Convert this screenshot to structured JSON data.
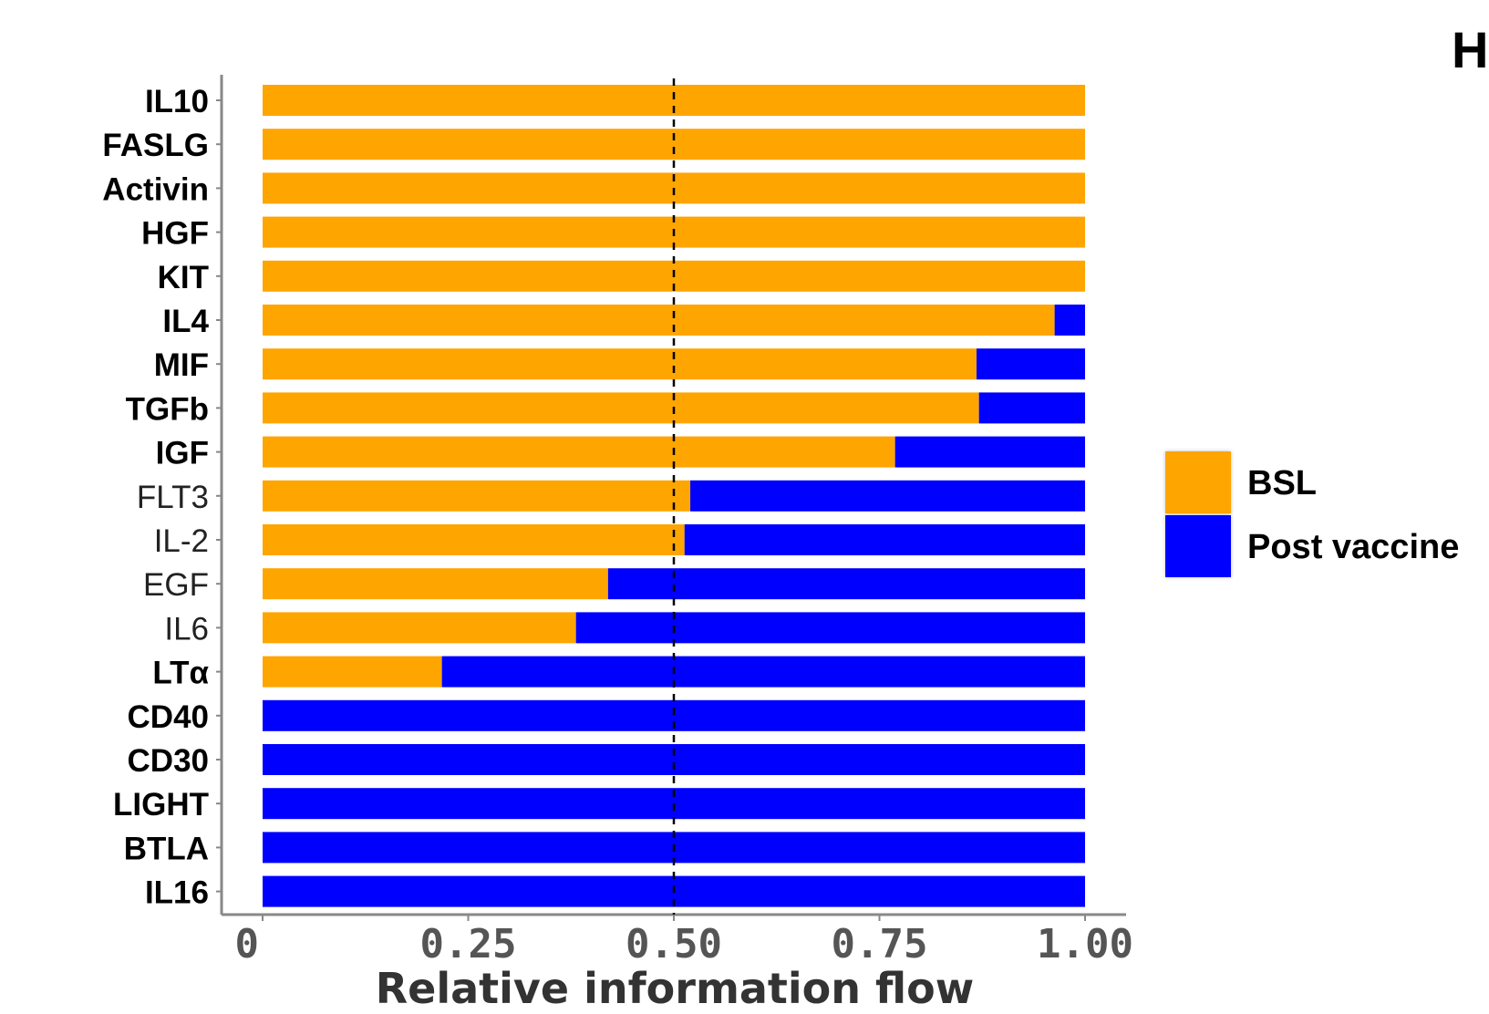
{
  "panel_label": "H",
  "chart_data": {
    "type": "bar",
    "orientation": "horizontal",
    "stacked": true,
    "normalized": true,
    "categories": [
      "IL10",
      "FASLG",
      "Activin",
      "HGF",
      "KIT",
      "IL4",
      "MIF",
      "TGFb",
      "IGF",
      "FLT3",
      "IL-2",
      "EGF",
      "IL6",
      "LTα",
      "CD40",
      "CD30",
      "LIGHT",
      "BTLA",
      "IL16"
    ],
    "bold_categories": [
      "IL10",
      "FASLG",
      "Activin",
      "HGF",
      "KIT",
      "IL4",
      "MIF",
      "TGFb",
      "IGF",
      "LTα",
      "CD40",
      "CD30",
      "LIGHT",
      "BTLA",
      "IL16"
    ],
    "series": [
      {
        "name": "BSL",
        "color": "#FFA500",
        "values": [
          1.0,
          1.0,
          1.0,
          1.0,
          1.0,
          0.963,
          0.868,
          0.871,
          0.769,
          0.52,
          0.513,
          0.42,
          0.381,
          0.218,
          0,
          0,
          0,
          0,
          0
        ]
      },
      {
        "name": "Post vaccine",
        "color": "#0000FF",
        "values": [
          0,
          0,
          0,
          0,
          0,
          0.037,
          0.132,
          0.129,
          0.231,
          0.48,
          0.487,
          0.58,
          0.619,
          0.782,
          1.0,
          1.0,
          1.0,
          1.0,
          1.0
        ]
      }
    ],
    "xlabel": "Relative information flow",
    "ylabel": "",
    "xlim": [
      0,
      1.0
    ],
    "xticks": [
      0,
      0.25,
      0.5,
      0.75,
      1.0
    ],
    "xtick_labels": [
      "0",
      "0.25",
      "0.50",
      "0.75",
      "1.00"
    ],
    "reference_line": {
      "x": 0.5,
      "style": "dashed"
    },
    "grid": false,
    "legend_position": "right"
  }
}
